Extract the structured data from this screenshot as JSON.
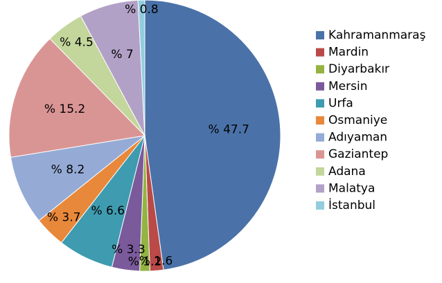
{
  "chart_data": {
    "type": "pie",
    "categories": [
      "Kahramanmaraş",
      "Mardin",
      "Diyarbakır",
      "Mersin",
      "Urfa",
      "Osmaniye",
      "Adıyaman",
      "Gaziantep",
      "Adana",
      "Malatya",
      "İstanbul"
    ],
    "values": [
      47.7,
      1.6,
      1.2,
      3.3,
      6.6,
      3.7,
      8.2,
      15.2,
      4.5,
      7,
      0.8
    ],
    "value_labels": [
      "% 47.7",
      "% 1.6",
      "% 1.2",
      "% 3.3",
      "% 6.6",
      "% 3.7",
      "% 8.2",
      "% 15.2",
      "% 4.5",
      "% 7",
      "% 0.8"
    ],
    "colors": [
      "#4a72a8",
      "#b94a48",
      "#93b443",
      "#7a5a9b",
      "#3e9bb0",
      "#e8883a",
      "#95abd6",
      "#d99594",
      "#c3d69b",
      "#b2a1c7",
      "#93cddd"
    ],
    "legend": "right"
  }
}
